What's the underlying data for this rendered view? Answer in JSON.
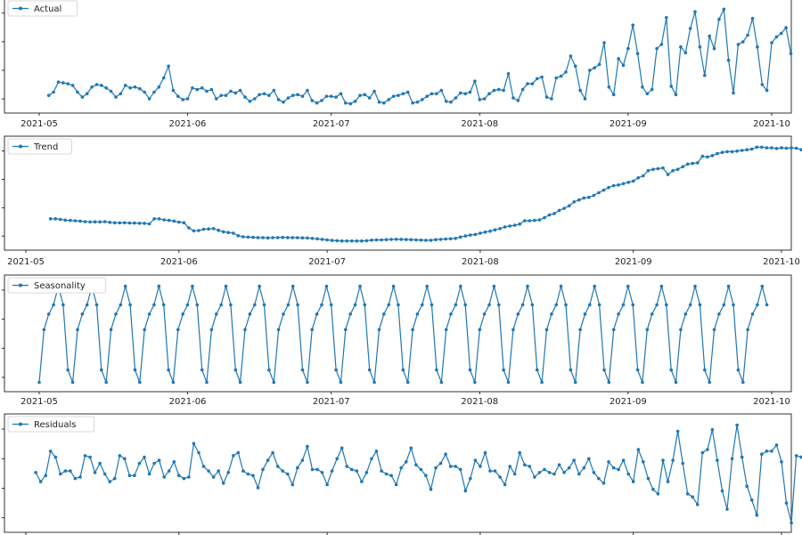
{
  "chart_data": [
    {
      "type": "line",
      "legend": "Actual",
      "color": "#1f77b4",
      "x_ticks": [
        "2021-05",
        "2021-06",
        "2021-07",
        "2021-08",
        "2021-09",
        "2021-10"
      ],
      "x_start": "2021-05-03",
      "values": [
        1.0,
        1.4,
        2.6,
        2.5,
        2.4,
        2.2,
        1.4,
        0.8,
        1.2,
        2.0,
        2.3,
        2.2,
        1.9,
        1.5,
        0.8,
        1.2,
        2.2,
        1.9,
        2.0,
        1.8,
        1.4,
        0.6,
        1.4,
        2.0,
        3.1,
        4.5,
        1.6,
        0.9,
        0.5,
        0.6,
        1.9,
        1.7,
        1.9,
        1.5,
        1.7,
        0.6,
        1.0,
        1.0,
        1.5,
        1.3,
        1.6,
        0.8,
        0.3,
        0.6,
        1.1,
        1.2,
        1.0,
        1.6,
        0.5,
        0.2,
        0.7,
        1.0,
        1.1,
        0.9,
        1.6,
        0.4,
        0.1,
        0.4,
        0.9,
        0.9,
        0.8,
        1.2,
        0.1,
        0.0,
        0.3,
        1.0,
        1.1,
        0.7,
        1.5,
        0.2,
        0.1,
        0.5,
        0.9,
        1.0,
        1.2,
        1.4,
        0.1,
        0.2,
        0.5,
        0.9,
        1.2,
        1.2,
        1.6,
        0.3,
        0.2,
        0.7,
        1.3,
        1.2,
        1.4,
        2.7,
        0.5,
        0.6,
        1.2,
        1.6,
        1.7,
        1.6,
        3.6,
        0.7,
        0.4,
        1.7,
        2.4,
        2.4,
        3.0,
        3.2,
        0.8,
        0.6,
        3.1,
        3.3,
        3.8,
        5.7,
        4.5,
        1.6,
        0.6,
        4.0,
        4.3,
        4.7,
        7.3,
        2.0,
        1.1,
        5.4,
        4.6,
        6.6,
        9.4,
        6.0,
        2.0,
        1.2,
        1.7,
        6.6,
        7.1,
        10.3,
        2.1,
        1.1,
        6.8,
        6.1,
        9.0,
        11.0,
        6.8,
        3.4,
        8.1,
        6.6,
        10.1,
        11.3,
        5.2,
        1.3,
        7.1,
        7.4,
        8.2,
        10.2,
        6.8,
        2.3,
        1.6,
        7.3,
        8.0,
        8.4,
        9.1,
        6.0
      ]
    },
    {
      "type": "line",
      "legend": "Trend",
      "color": "#1f77b4",
      "x_ticks": [
        "2021-05",
        "2021-06",
        "2021-07",
        "2021-08",
        "2021-09",
        "2021-10"
      ],
      "x_start": "2021-05-06",
      "values": [
        1.8,
        1.8,
        1.75,
        1.7,
        1.68,
        1.65,
        1.62,
        1.58,
        1.56,
        1.57,
        1.56,
        1.58,
        1.53,
        1.5,
        1.49,
        1.5,
        1.48,
        1.47,
        1.46,
        1.45,
        1.41,
        1.8,
        1.8,
        1.72,
        1.68,
        1.62,
        1.55,
        1.5,
        1.1,
        0.88,
        0.9,
        1.0,
        1.02,
        1.05,
        0.92,
        0.8,
        0.75,
        0.7,
        0.5,
        0.42,
        0.4,
        0.38,
        0.36,
        0.35,
        0.34,
        0.35,
        0.36,
        0.37,
        0.36,
        0.36,
        0.35,
        0.34,
        0.33,
        0.3,
        0.26,
        0.22,
        0.18,
        0.14,
        0.12,
        0.1,
        0.1,
        0.1,
        0.1,
        0.1,
        0.12,
        0.16,
        0.18,
        0.18,
        0.2,
        0.22,
        0.23,
        0.22,
        0.21,
        0.2,
        0.18,
        0.17,
        0.15,
        0.15,
        0.2,
        0.22,
        0.25,
        0.27,
        0.3,
        0.4,
        0.48,
        0.55,
        0.6,
        0.7,
        0.78,
        0.85,
        0.95,
        1.05,
        1.18,
        1.25,
        1.3,
        1.4,
        1.65,
        1.65,
        1.68,
        1.72,
        1.88,
        2.1,
        2.2,
        2.45,
        2.6,
        2.8,
        3.1,
        3.25,
        3.4,
        3.45,
        3.6,
        3.8,
        4.0,
        4.2,
        4.35,
        4.4,
        4.5,
        4.6,
        4.7,
        4.95,
        5.1,
        5.5,
        5.6,
        5.65,
        5.7,
        5.2,
        5.5,
        5.6,
        5.8,
        6.0,
        6.05,
        6.1,
        6.6,
        6.55,
        6.65,
        6.8,
        6.9,
        6.95,
        6.95,
        7.0,
        7.05,
        7.1,
        7.15,
        7.3,
        7.3,
        7.25,
        7.25,
        7.2,
        7.25,
        7.22,
        7.25,
        7.22,
        7.1,
        7.0
      ]
    },
    {
      "type": "line",
      "legend": "Seasonality",
      "color": "#1f77b4",
      "x_ticks": [
        "2021-05",
        "2021-06",
        "2021-07",
        "2021-08",
        "2021-09",
        "2021-10"
      ],
      "x_start": "2021-05-01",
      "period": 7,
      "pattern": [
        -1.5,
        0.2,
        0.7,
        1.0,
        1.6,
        1.0,
        -1.1
      ]
    },
    {
      "type": "line",
      "legend": "Residuals",
      "color": "#1f77b4",
      "x_ticks": [
        "2021-05",
        "2021-06",
        "2021-07",
        "2021-08",
        "2021-09",
        "2021-10"
      ],
      "x_start": "2021-05-03",
      "values": [
        -0.2,
        -0.8,
        -0.4,
        1.2,
        0.8,
        -0.3,
        -0.1,
        -0.1,
        -0.6,
        -0.5,
        0.9,
        0.8,
        -0.2,
        0.4,
        -0.3,
        -0.8,
        -0.6,
        0.9,
        0.7,
        -0.4,
        -0.4,
        0.4,
        0.8,
        -0.3,
        0.4,
        0.6,
        -0.5,
        -0.1,
        0.5,
        -0.4,
        -0.6,
        -0.5,
        1.7,
        1.1,
        0.2,
        -0.1,
        -0.5,
        -0.1,
        -0.9,
        -0.2,
        0.9,
        1.1,
        -0.1,
        -0.3,
        -0.4,
        -1.2,
        0.0,
        0.6,
        1.1,
        0.2,
        -0.1,
        -0.3,
        -1.0,
        0.1,
        0.6,
        1.5,
        0.0,
        0.0,
        -0.2,
        -1.0,
        -0.1,
        0.7,
        1.4,
        0.2,
        0.0,
        -0.1,
        -0.8,
        -0.2,
        0.7,
        1.2,
        -0.1,
        -0.3,
        -0.4,
        -1.0,
        0.1,
        0.5,
        1.4,
        0.3,
        0.0,
        -0.4,
        -1.3,
        0.1,
        0.4,
        1.0,
        0.2,
        0.2,
        0.0,
        -1.4,
        -0.6,
        0.6,
        0.2,
        1.1,
        -0.1,
        -0.1,
        -0.5,
        -1.0,
        0.2,
        -0.3,
        1.1,
        0.3,
        0.2,
        -0.5,
        -0.2,
        0.0,
        -0.2,
        -0.3,
        0.3,
        -0.2,
        0.1,
        0.6,
        -0.3,
        0.1,
        0.7,
        -0.2,
        -0.6,
        -0.9,
        0.5,
        0.1,
        0.0,
        0.6,
        -0.3,
        -0.8,
        1.3,
        0.5,
        -0.6,
        -1.3,
        -1.6,
        0.6,
        -0.8,
        0.6,
        2.5,
        0.4,
        -1.6,
        -1.8,
        -2.3,
        1.1,
        1.3,
        2.6,
        0.6,
        -1.4,
        -2.6,
        0.7,
        2.9,
        0.8,
        -1.1,
        -2.0,
        -3.0,
        1.0,
        1.2,
        1.2,
        1.6,
        0.5,
        -2.2,
        -3.5,
        0.9,
        0.8,
        1.2,
        2.0,
        0.5,
        -2.3,
        -2.3,
        1.0,
        1.4
      ]
    }
  ]
}
